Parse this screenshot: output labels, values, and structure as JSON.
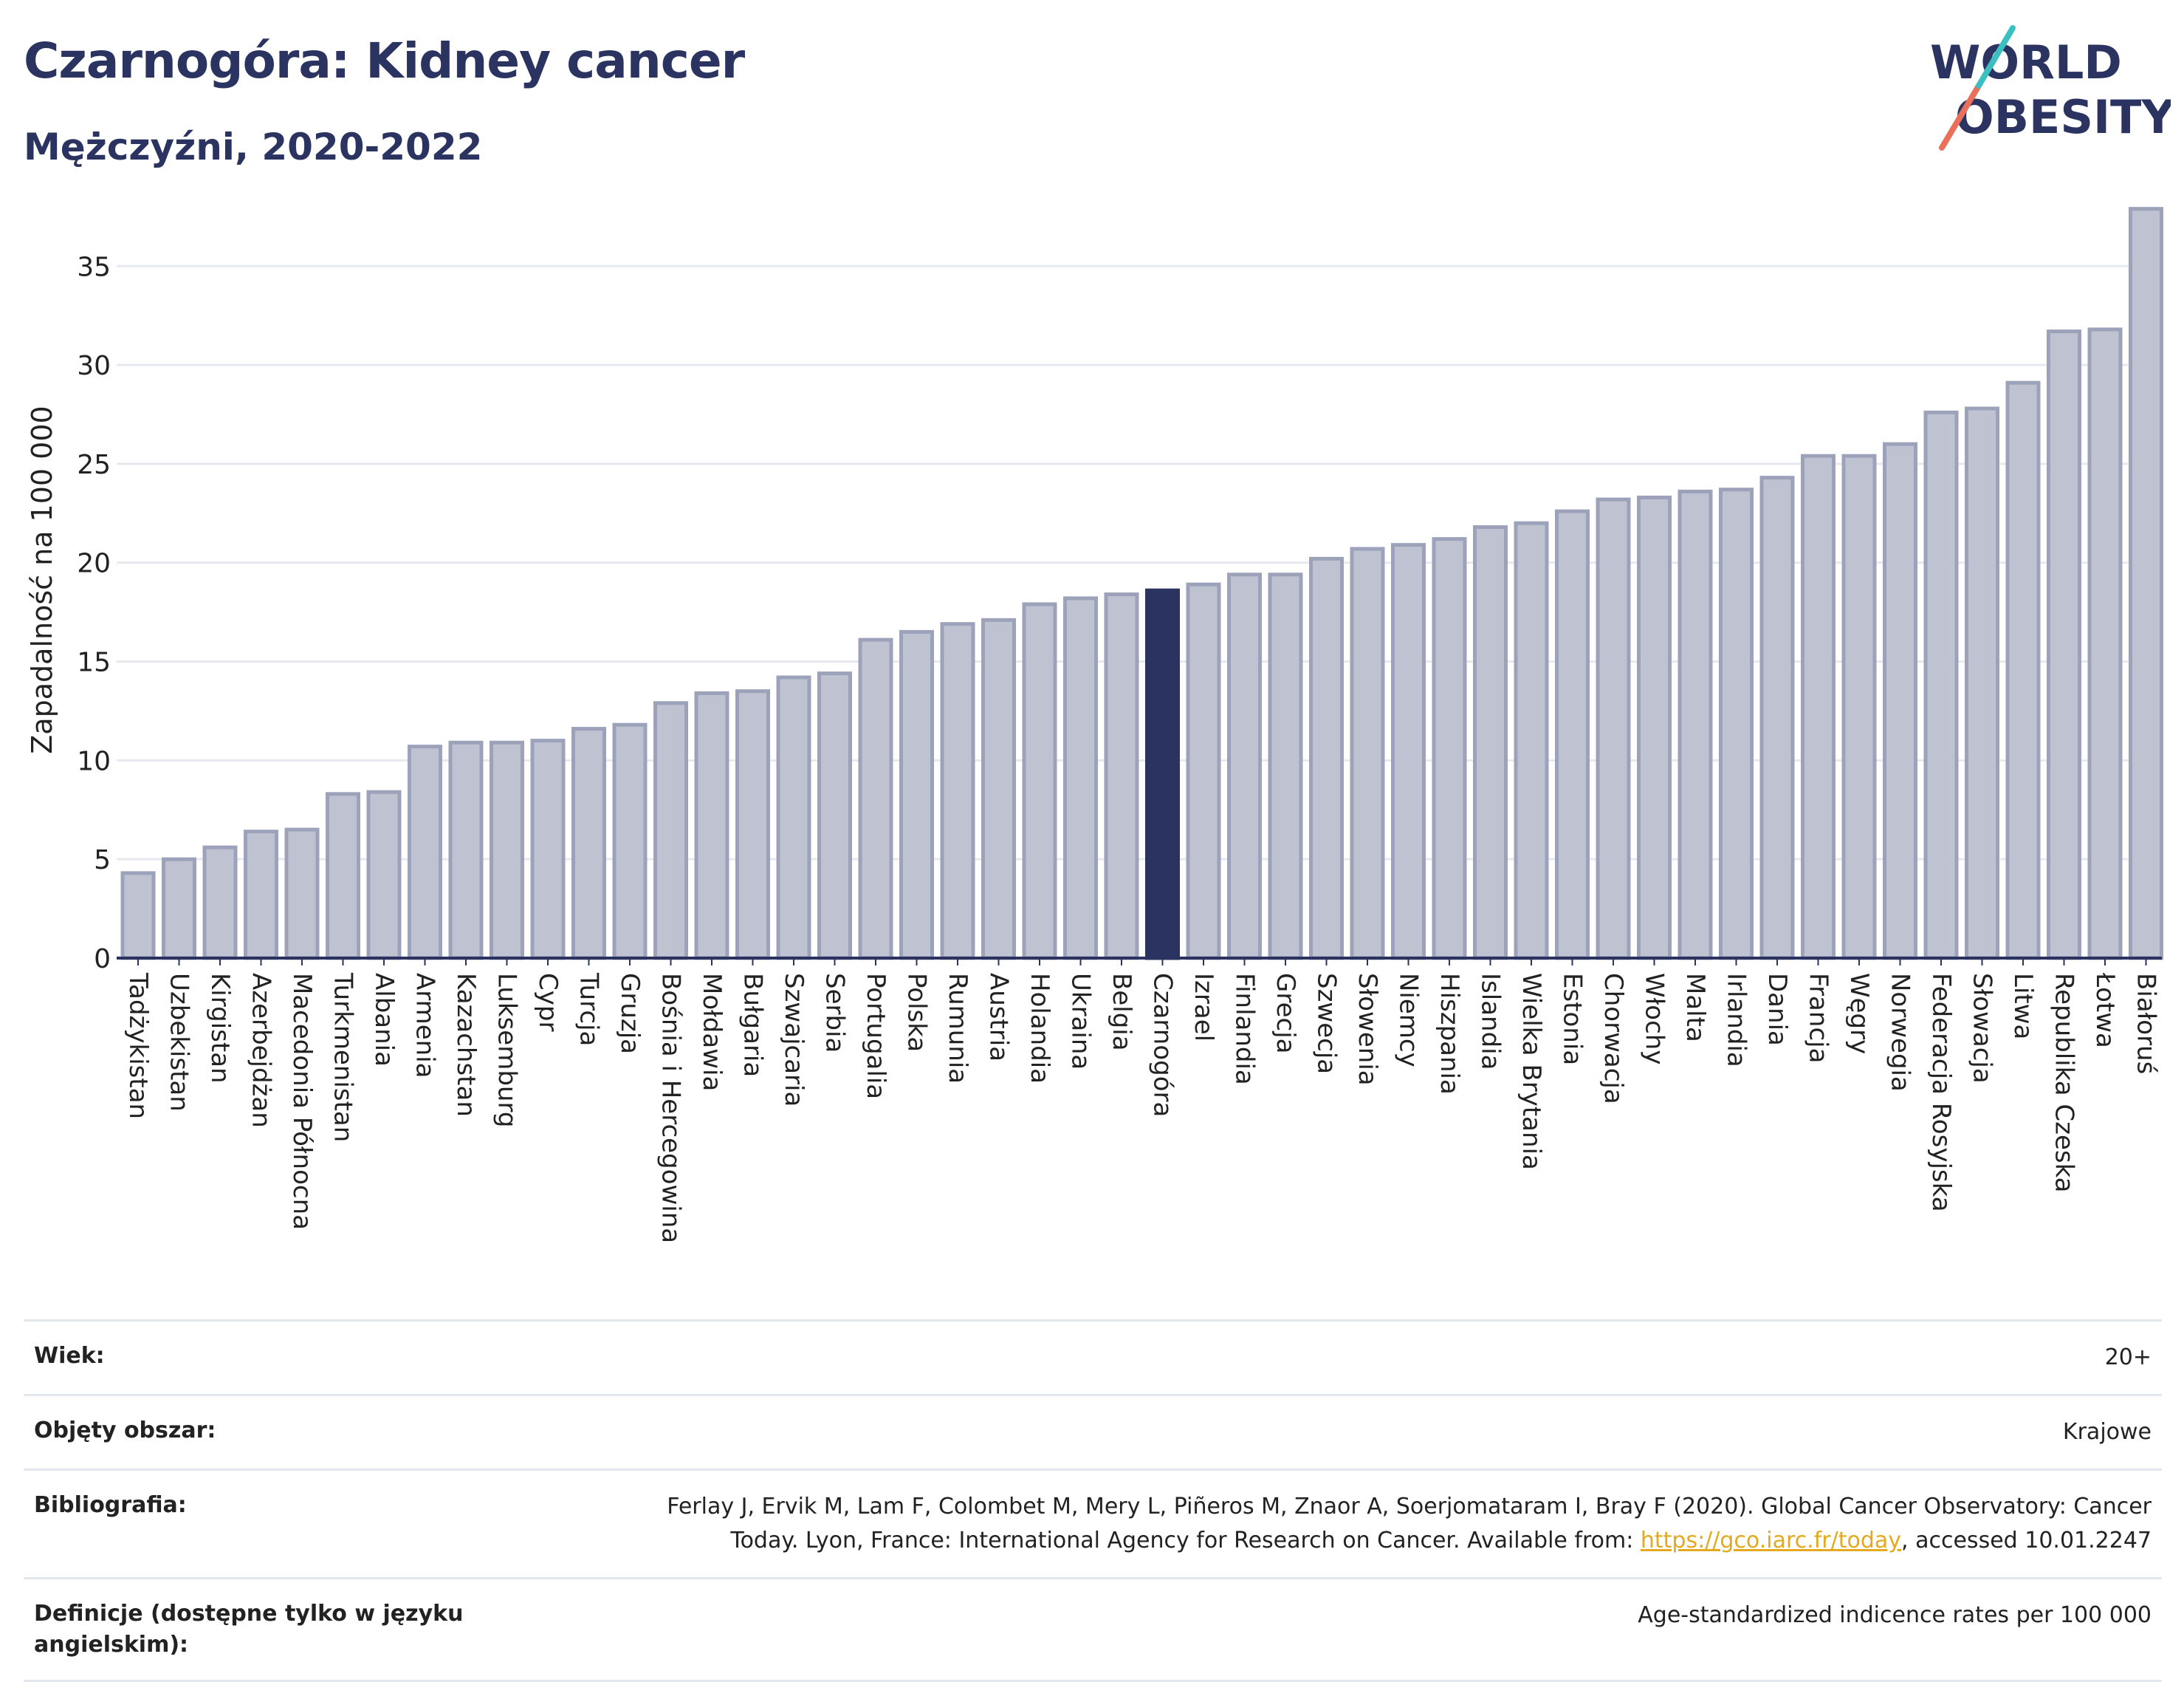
{
  "header": {
    "title": "Czarnogóra: Kidney cancer",
    "subtitle": "Mężczyźni, 2020-2022"
  },
  "logo": {
    "line1": "WORLD",
    "line2": "OBESITY"
  },
  "colors": {
    "bar": "#bfc3d1",
    "bar_border": "#9ca2b9",
    "highlight": "#2b3461",
    "text": "#2b3461",
    "link": "#e3a91f",
    "logo_teal": "#3bbfc1",
    "logo_coral": "#e9705b"
  },
  "chart_data": {
    "type": "bar",
    "ylabel": "Zapadalność na 100 000",
    "ylim": [
      0,
      38
    ],
    "yticks": [
      0,
      5,
      10,
      15,
      20,
      25,
      30,
      35
    ],
    "grid": true,
    "highlight": "Czarnogóra",
    "categories": [
      "Tadżykistan",
      "Uzbekistan",
      "Kirgistan",
      "Azerbejdżan",
      "Macedonia Północna",
      "Turkmenistan",
      "Albania",
      "Armenia",
      "Kazachstan",
      "Luksemburg",
      "Cypr",
      "Turcja",
      "Gruzja",
      "Bośnia i Hercegowina",
      "Mołdawia",
      "Bułgaria",
      "Szwajcaria",
      "Serbia",
      "Portugalia",
      "Polska",
      "Rumunia",
      "Austria",
      "Holandia",
      "Ukraina",
      "Belgia",
      "Czarnogóra",
      "Izrael",
      "Finlandia",
      "Grecja",
      "Szwecja",
      "Słowenia",
      "Niemcy",
      "Hiszpania",
      "Islandia",
      "Wielka Brytania",
      "Estonia",
      "Chorwacja",
      "Włochy",
      "Malta",
      "Irlandia",
      "Dania",
      "Francja",
      "Węgry",
      "Norwegia",
      "Federacja Rosyjska",
      "Słowacja",
      "Litwa",
      "Republika Czeska",
      "Łotwa",
      "Białoruś"
    ],
    "values": [
      4.3,
      5.0,
      5.6,
      6.4,
      6.5,
      8.3,
      8.4,
      10.7,
      10.9,
      10.9,
      11.0,
      11.6,
      11.8,
      12.9,
      13.4,
      13.5,
      14.2,
      14.4,
      16.1,
      16.5,
      16.9,
      17.1,
      17.9,
      18.2,
      18.4,
      18.6,
      18.9,
      19.4,
      19.4,
      20.2,
      20.7,
      20.9,
      21.2,
      21.8,
      22.0,
      22.6,
      23.2,
      23.3,
      23.6,
      23.7,
      24.3,
      25.4,
      25.4,
      26.0,
      27.6,
      27.8,
      29.1,
      31.7,
      31.8,
      37.9
    ]
  },
  "meta": [
    {
      "label": "Wiek:",
      "value": "20+"
    },
    {
      "label": "Objęty obszar:",
      "value": "Krajowe"
    },
    {
      "label": "Bibliografia:",
      "value_line1": "Ferlay J, Ervik M, Lam F, Colombet M, Mery L, Piñeros M, Znaor A, Soerjomataram I, Bray F (2020). Global Cancer Observatory: Cancer",
      "value_line2_prefix": "Today. Lyon, France: International Agency for Research on Cancer. Available from: ",
      "link": "https://gco.iarc.fr/today",
      "value_line2_suffix": ", accessed 10.01.2247"
    },
    {
      "label": "Definicje (dostępne tylko w języku angielskim):",
      "value": "Age-standardized indicence rates per 100 000"
    }
  ]
}
